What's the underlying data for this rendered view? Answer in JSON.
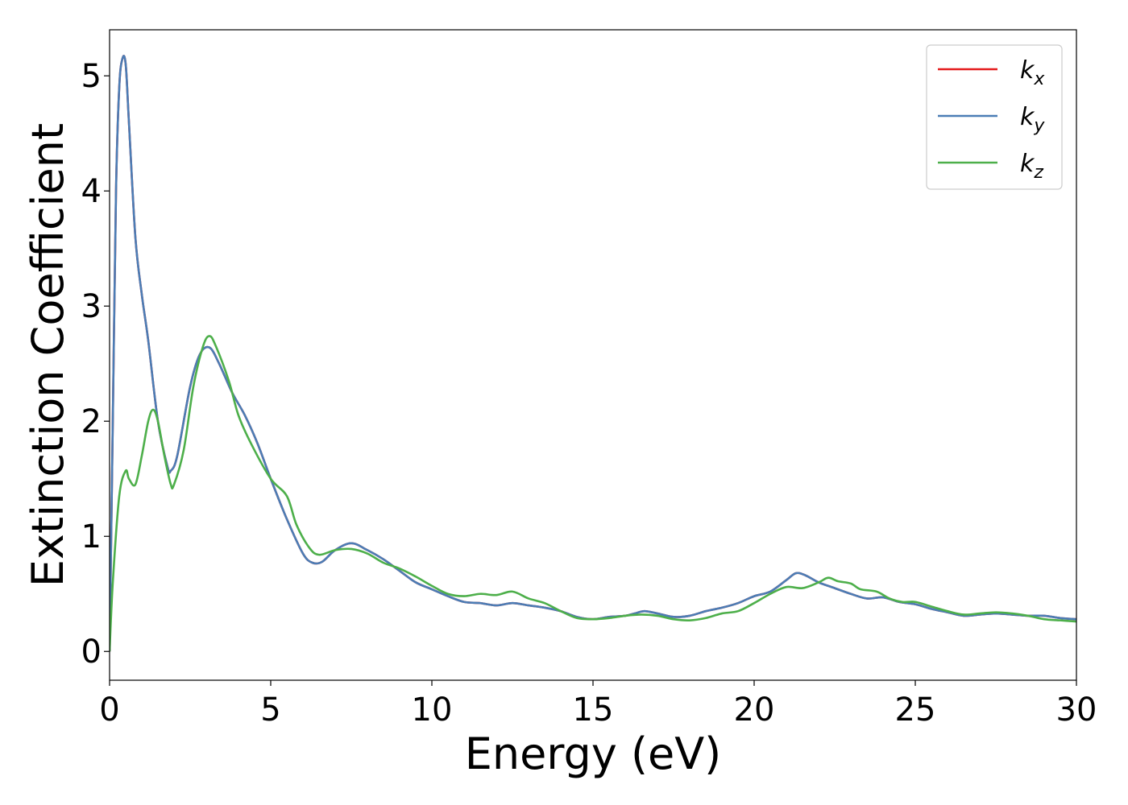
{
  "chart_data": {
    "type": "line",
    "xlabel": "Energy (eV)",
    "ylabel": "Extinction Coefficient",
    "xlim": [
      0,
      30
    ],
    "ylim": [
      -0.25,
      5.4
    ],
    "xticks": [
      "0",
      "5",
      "10",
      "15",
      "20",
      "25",
      "30"
    ],
    "yticks": [
      "0",
      "1",
      "2",
      "3",
      "4",
      "5"
    ],
    "grid": false,
    "legend_position": "top-right",
    "series": [
      {
        "name": "k",
        "sub": "x",
        "color": "#e41a1c",
        "x": [
          0,
          0.1,
          0.2,
          0.3,
          0.4,
          0.5,
          0.6,
          0.8,
          1.0,
          1.2,
          1.5,
          1.8,
          1.9,
          2.1,
          2.5,
          2.8,
          3.1,
          3.4,
          3.8,
          4.2,
          4.6,
          5.0,
          5.5,
          6.0,
          6.3,
          6.6,
          7.0,
          7.5,
          8.0,
          8.5,
          9.0,
          9.5,
          10,
          10.5,
          11,
          11.5,
          12,
          12.5,
          13,
          13.5,
          14,
          14.5,
          15,
          15.5,
          16,
          16.3,
          16.6,
          17,
          17.5,
          18,
          18.5,
          19,
          19.5,
          20,
          20.5,
          21,
          21.3,
          21.6,
          22,
          22.5,
          23,
          23.5,
          24,
          24.5,
          25,
          25.5,
          26,
          26.5,
          27,
          27.5,
          28,
          28.5,
          29,
          29.5,
          30
        ],
        "values": [
          0,
          2.0,
          4.0,
          4.9,
          5.15,
          5.1,
          4.6,
          3.6,
          3.1,
          2.7,
          2.0,
          1.6,
          1.57,
          1.7,
          2.3,
          2.58,
          2.64,
          2.5,
          2.25,
          2.05,
          1.8,
          1.5,
          1.15,
          0.85,
          0.77,
          0.78,
          0.88,
          0.94,
          0.88,
          0.8,
          0.7,
          0.6,
          0.54,
          0.48,
          0.43,
          0.42,
          0.4,
          0.42,
          0.4,
          0.38,
          0.35,
          0.3,
          0.28,
          0.3,
          0.31,
          0.33,
          0.35,
          0.33,
          0.3,
          0.31,
          0.35,
          0.38,
          0.42,
          0.48,
          0.52,
          0.62,
          0.68,
          0.66,
          0.6,
          0.55,
          0.5,
          0.46,
          0.47,
          0.43,
          0.41,
          0.37,
          0.34,
          0.31,
          0.32,
          0.33,
          0.32,
          0.31,
          0.31,
          0.29,
          0.28
        ]
      },
      {
        "name": "k",
        "sub": "y",
        "color": "#4b7db5",
        "x": [
          0,
          0.1,
          0.2,
          0.3,
          0.4,
          0.5,
          0.6,
          0.8,
          1.0,
          1.2,
          1.5,
          1.8,
          1.9,
          2.1,
          2.5,
          2.8,
          3.1,
          3.4,
          3.8,
          4.2,
          4.6,
          5.0,
          5.5,
          6.0,
          6.3,
          6.6,
          7.0,
          7.5,
          8.0,
          8.5,
          9.0,
          9.5,
          10,
          10.5,
          11,
          11.5,
          12,
          12.5,
          13,
          13.5,
          14,
          14.5,
          15,
          15.5,
          16,
          16.3,
          16.6,
          17,
          17.5,
          18,
          18.5,
          19,
          19.5,
          20,
          20.5,
          21,
          21.3,
          21.6,
          22,
          22.5,
          23,
          23.5,
          24,
          24.5,
          25,
          25.5,
          26,
          26.5,
          27,
          27.5,
          28,
          28.5,
          29,
          29.5,
          30
        ],
        "values": [
          0,
          2.0,
          4.0,
          4.9,
          5.15,
          5.1,
          4.6,
          3.6,
          3.1,
          2.7,
          2.0,
          1.6,
          1.57,
          1.7,
          2.3,
          2.58,
          2.64,
          2.5,
          2.25,
          2.05,
          1.8,
          1.5,
          1.15,
          0.85,
          0.77,
          0.78,
          0.88,
          0.94,
          0.88,
          0.8,
          0.7,
          0.6,
          0.54,
          0.48,
          0.43,
          0.42,
          0.4,
          0.42,
          0.4,
          0.38,
          0.35,
          0.3,
          0.28,
          0.3,
          0.31,
          0.33,
          0.35,
          0.33,
          0.3,
          0.31,
          0.35,
          0.38,
          0.42,
          0.48,
          0.52,
          0.62,
          0.68,
          0.66,
          0.6,
          0.55,
          0.5,
          0.46,
          0.47,
          0.43,
          0.41,
          0.37,
          0.34,
          0.31,
          0.32,
          0.33,
          0.32,
          0.31,
          0.31,
          0.29,
          0.28
        ]
      },
      {
        "name": "k",
        "sub": "z",
        "color": "#4daf4a",
        "x": [
          0,
          0.1,
          0.3,
          0.5,
          0.6,
          0.8,
          1.0,
          1.2,
          1.35,
          1.5,
          1.7,
          1.9,
          2.0,
          2.3,
          2.6,
          2.9,
          3.1,
          3.3,
          3.7,
          4.0,
          4.4,
          5.0,
          5.5,
          5.8,
          6.2,
          6.5,
          7.0,
          7.5,
          8.0,
          8.5,
          9.0,
          9.5,
          10,
          10.5,
          11,
          11.5,
          12,
          12.5,
          13,
          13.5,
          14,
          14.5,
          15,
          15.5,
          16,
          16.5,
          17,
          17.5,
          18,
          18.5,
          19,
          19.5,
          20,
          20.5,
          21,
          21.5,
          22,
          22.3,
          22.6,
          23,
          23.3,
          23.8,
          24.2,
          24.6,
          25,
          25.5,
          26,
          26.5,
          27,
          27.5,
          28,
          28.5,
          29,
          29.5,
          30
        ],
        "values": [
          0,
          0.6,
          1.35,
          1.57,
          1.5,
          1.45,
          1.7,
          2.0,
          2.1,
          2.0,
          1.7,
          1.45,
          1.45,
          1.75,
          2.3,
          2.65,
          2.74,
          2.65,
          2.35,
          2.05,
          1.8,
          1.5,
          1.35,
          1.1,
          0.9,
          0.84,
          0.88,
          0.89,
          0.85,
          0.77,
          0.72,
          0.65,
          0.57,
          0.5,
          0.48,
          0.5,
          0.49,
          0.52,
          0.46,
          0.42,
          0.35,
          0.29,
          0.28,
          0.29,
          0.31,
          0.32,
          0.31,
          0.28,
          0.27,
          0.29,
          0.33,
          0.35,
          0.42,
          0.5,
          0.56,
          0.55,
          0.6,
          0.64,
          0.61,
          0.59,
          0.54,
          0.52,
          0.46,
          0.43,
          0.43,
          0.39,
          0.35,
          0.32,
          0.33,
          0.34,
          0.33,
          0.31,
          0.28,
          0.27,
          0.26
        ]
      }
    ]
  }
}
